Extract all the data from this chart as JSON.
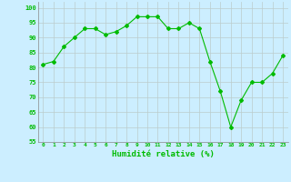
{
  "x": [
    0,
    1,
    2,
    3,
    4,
    5,
    6,
    7,
    8,
    9,
    10,
    11,
    12,
    13,
    14,
    15,
    16,
    17,
    18,
    19,
    20,
    21,
    22,
    23
  ],
  "y": [
    81,
    82,
    87,
    90,
    93,
    93,
    91,
    92,
    94,
    97,
    97,
    97,
    93,
    93,
    95,
    93,
    82,
    72,
    60,
    69,
    75,
    75,
    78,
    84
  ],
  "line_color": "#00bb00",
  "marker": "D",
  "marker_size": 2.0,
  "bg_color": "#cceeff",
  "grid_color": "#bbcccc",
  "xlabel": "Humidité relative (%)",
  "xlabel_color": "#00bb00",
  "tick_color": "#00bb00",
  "ylim": [
    55,
    102
  ],
  "yticks": [
    55,
    60,
    65,
    70,
    75,
    80,
    85,
    90,
    95,
    100
  ],
  "xlim": [
    -0.5,
    23.5
  ],
  "figsize": [
    3.2,
    2.0
  ],
  "dpi": 100
}
